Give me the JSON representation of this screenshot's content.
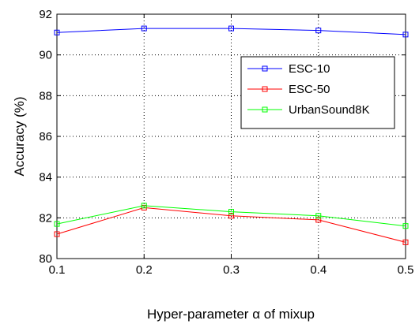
{
  "chart_data": {
    "type": "line",
    "xlabel": "Hyper-parameter α of mixup",
    "ylabel": "Accuracy (%)",
    "x": [
      0.1,
      0.2,
      0.3,
      0.4,
      0.5
    ],
    "xlim": [
      0.1,
      0.5
    ],
    "ylim": [
      80,
      92
    ],
    "x_ticks": [
      "0.1",
      "0.2",
      "0.3",
      "0.4",
      "0.5"
    ],
    "y_ticks": [
      "80",
      "82",
      "84",
      "86",
      "88",
      "90",
      "92"
    ],
    "grid": true,
    "legend_position": "upper-right",
    "series": [
      {
        "name": "ESC-10",
        "color": "#0000ff",
        "marker": "square",
        "values": [
          91.1,
          91.3,
          91.3,
          91.2,
          91.0
        ]
      },
      {
        "name": "ESC-50",
        "color": "#ff0000",
        "marker": "square",
        "values": [
          81.2,
          82.5,
          82.1,
          81.9,
          80.8
        ]
      },
      {
        "name": "UrbanSound8K",
        "color": "#00ff00",
        "marker": "square",
        "values": [
          81.7,
          82.6,
          82.3,
          82.1,
          81.6
        ]
      }
    ]
  }
}
